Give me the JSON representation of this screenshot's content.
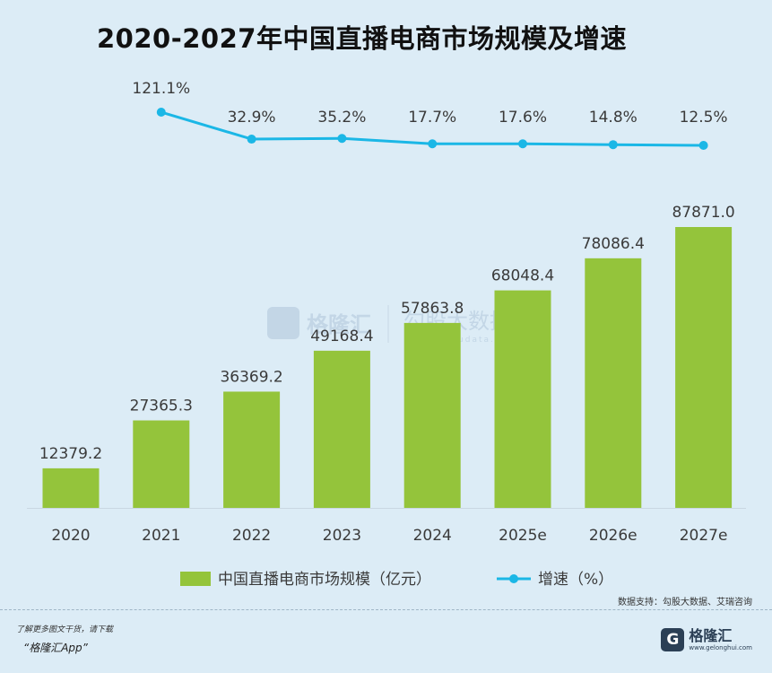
{
  "chart_title": "2020-2027年中国直播电商市场规模及增速",
  "chart_data": {
    "type": "bar",
    "title": "2020-2027年中国直播电商市场规模及增速",
    "categories": [
      "2020",
      "2021",
      "2022",
      "2023",
      "2024",
      "2025e",
      "2026e",
      "2027e"
    ],
    "series": [
      {
        "name": "中国直播电商市场规模（亿元）",
        "type": "bar",
        "values": [
          12379.2,
          27365.3,
          36369.2,
          49168.4,
          57863.8,
          68048.4,
          78086.4,
          87871.0
        ],
        "labels": [
          "12379.2",
          "27365.3",
          "36369.2",
          "49168.4",
          "57863.8",
          "68048.4",
          "78086.4",
          "87871.0"
        ],
        "color": "#94c43b"
      },
      {
        "name": "增速（%）",
        "type": "line",
        "values": [
          null,
          121.1,
          32.9,
          35.2,
          17.7,
          17.6,
          14.8,
          12.5
        ],
        "labels": [
          null,
          "121.1%",
          "32.9%",
          "35.2%",
          "17.7%",
          "17.6%",
          "14.8%",
          "12.5%"
        ],
        "color": "#1bb7e6"
      }
    ],
    "legend_position": "bottom",
    "grid": false
  },
  "legend": {
    "bar_label": "中国直播电商市场规模（亿元）",
    "line_label": "增速（%）"
  },
  "watermark": {
    "cn": "格隆汇",
    "sub": "勾股大数据",
    "url": "www.gogudata.com"
  },
  "source_text": "数据支持：勾股大数据、艾瑞咨询",
  "footer": {
    "note": "了解更多图文干货，请下载",
    "app": "“格隆汇App”",
    "logo_glyph": "G",
    "logo_cn": "格隆汇",
    "logo_en": "www.gelonghui.com"
  }
}
